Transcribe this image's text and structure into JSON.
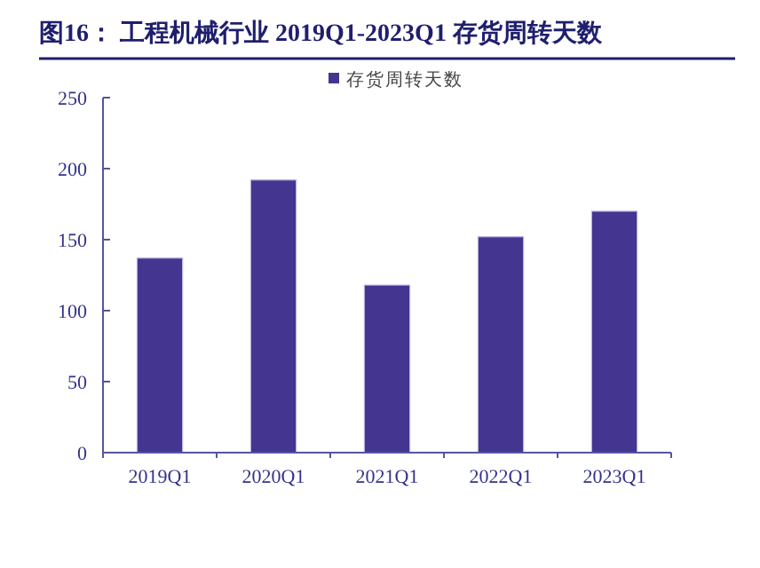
{
  "chart_data": {
    "type": "bar",
    "title": "图16：  工程机械行业 2019Q1-2023Q1 存货周转天数",
    "categories": [
      "2019Q1",
      "2020Q1",
      "2021Q1",
      "2022Q1",
      "2023Q1"
    ],
    "series": [
      {
        "name": "存货周转天数",
        "color": "#433590",
        "values": [
          137,
          192,
          118,
          152,
          170
        ]
      }
    ],
    "ylim": [
      0,
      250
    ],
    "yticks": [
      0,
      50,
      100,
      150,
      200,
      250
    ],
    "legend": "top",
    "grid": false
  }
}
